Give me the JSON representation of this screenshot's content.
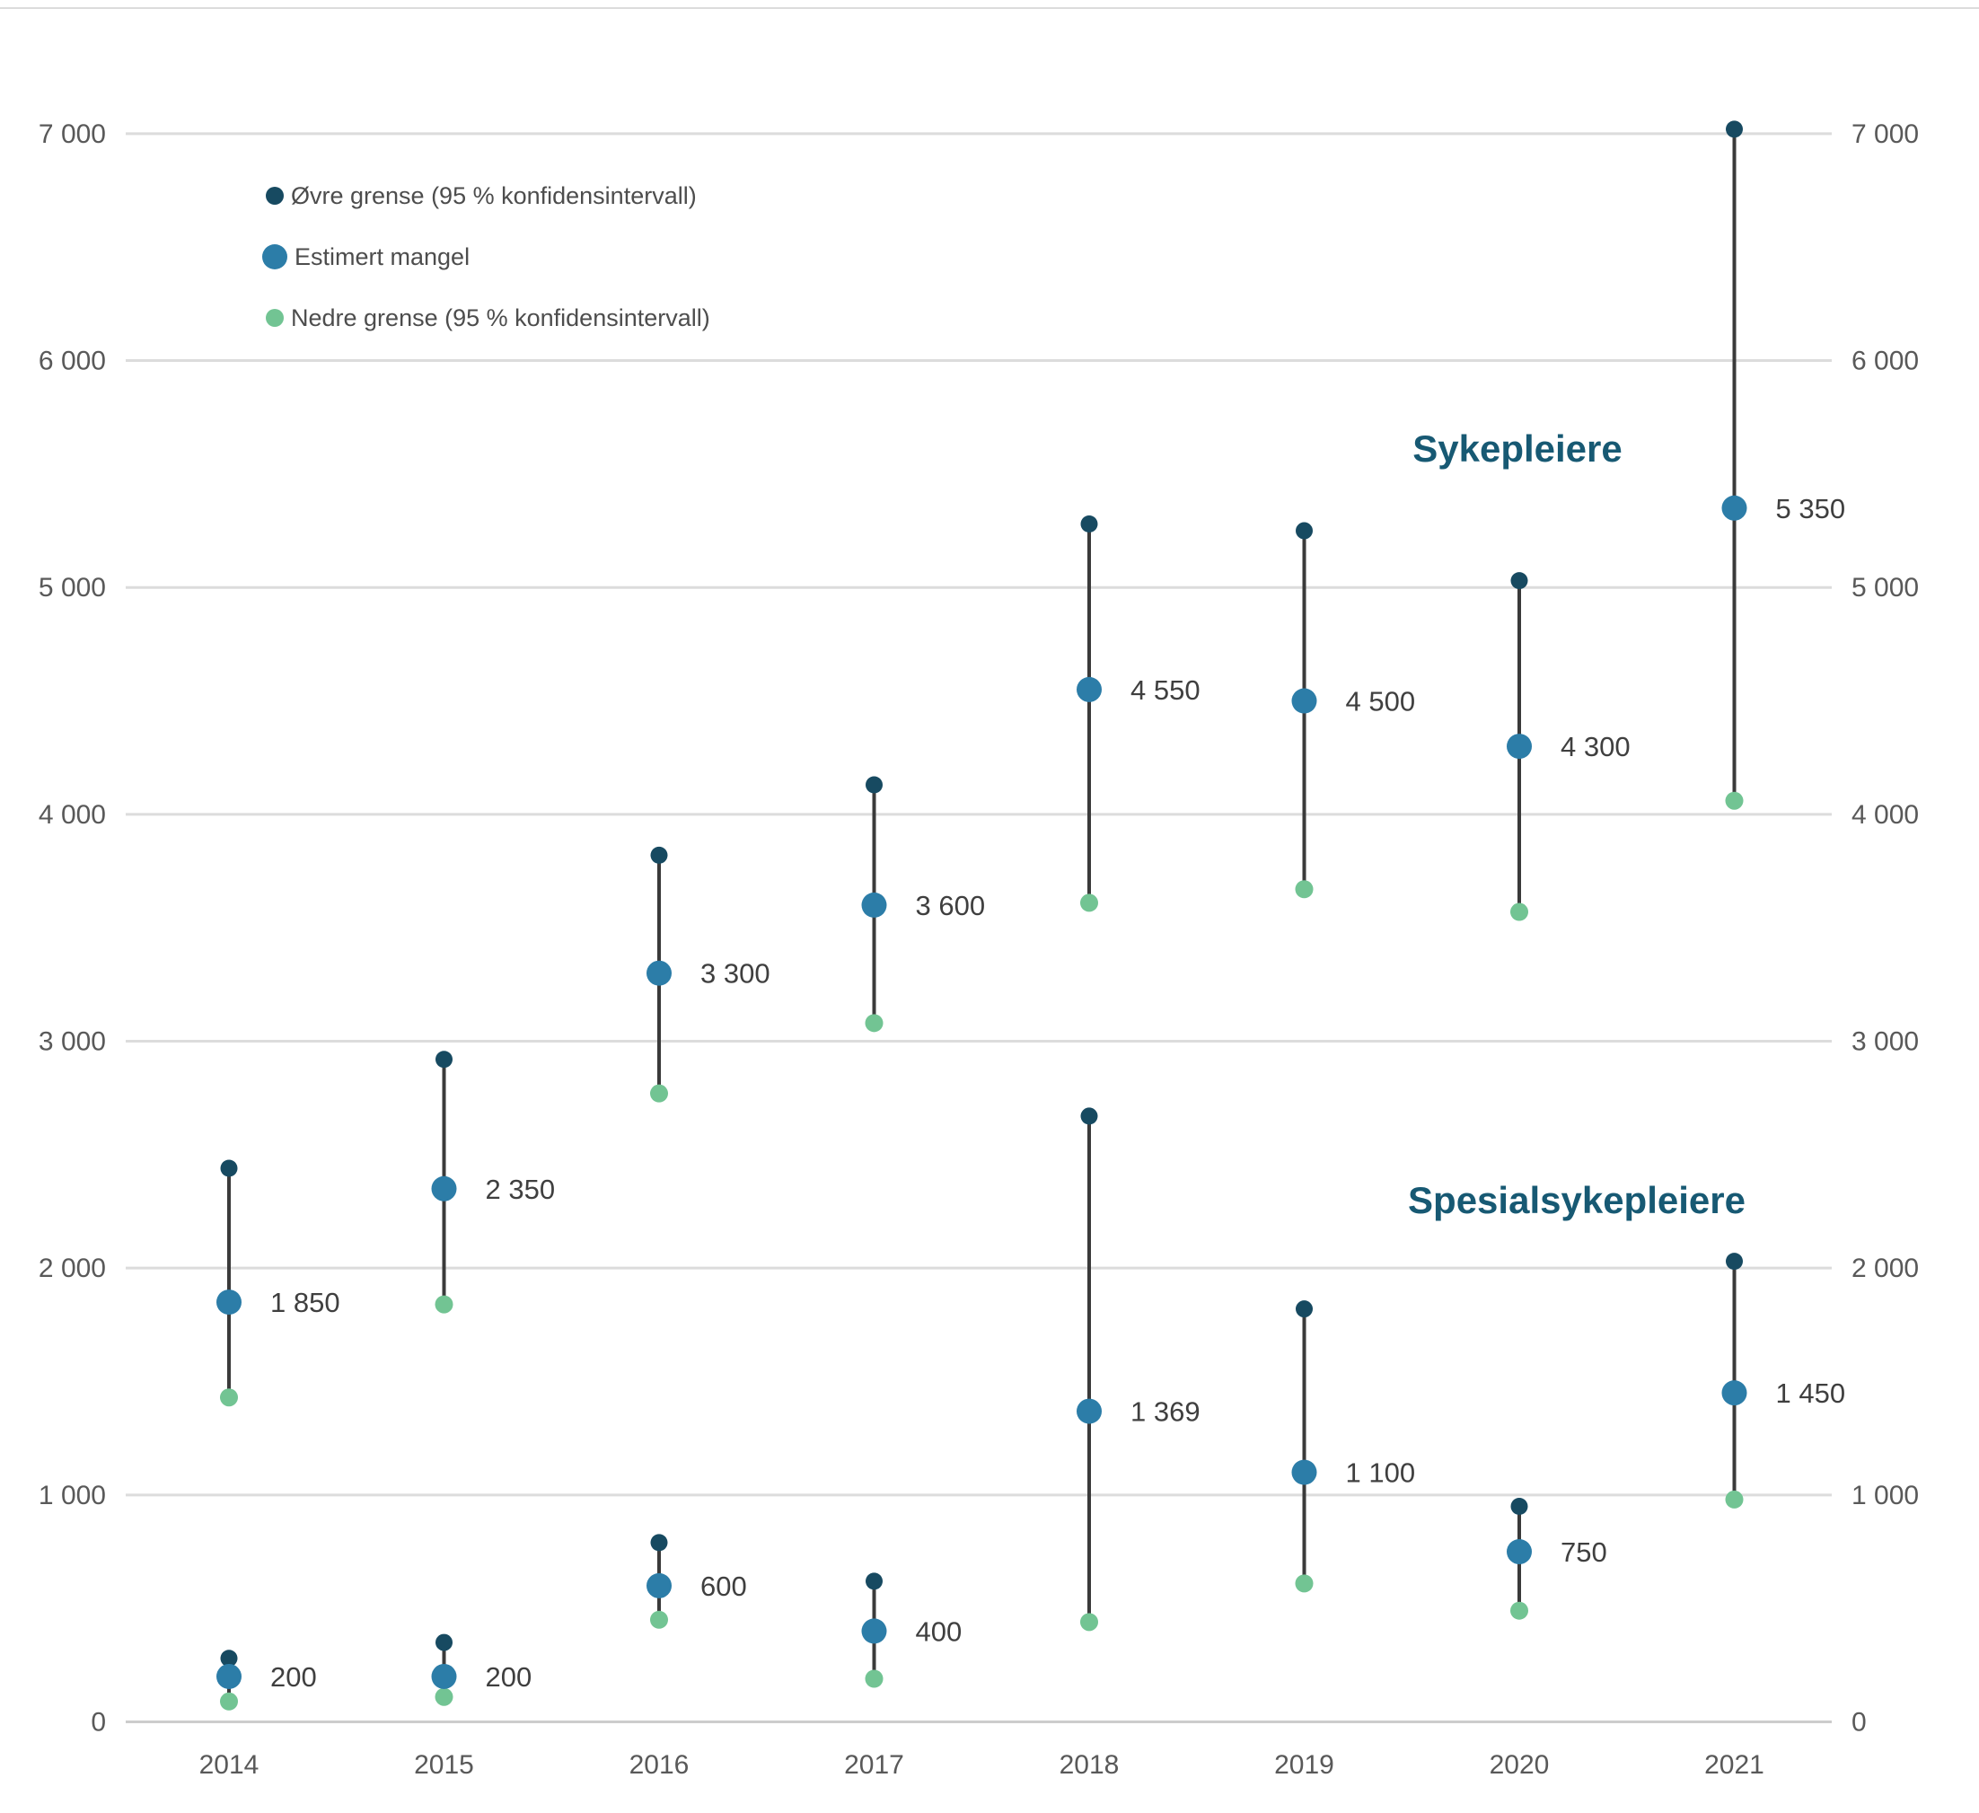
{
  "legend": {
    "items": [
      {
        "id": "upper",
        "label": "Øvre grense (95 % konfidensintervall)",
        "color": "#174A61",
        "size": "small"
      },
      {
        "id": "estimate",
        "label": "Estimert mangel",
        "color": "#2C7DA8",
        "size": "large"
      },
      {
        "id": "lower",
        "label": "Nedre grense (95 % konfidensintervall)",
        "color": "#72C493",
        "size": "small"
      }
    ]
  },
  "chart_data": {
    "type": "scatter",
    "subtype": "dot-and-whisker-range",
    "title": "",
    "xlabel": "",
    "ylabel": "",
    "categories": [
      "2014",
      "2015",
      "2016",
      "2017",
      "2018",
      "2019",
      "2020",
      "2021"
    ],
    "ylim": [
      0,
      7000
    ],
    "yticks": [
      0,
      1000,
      2000,
      3000,
      4000,
      5000,
      6000,
      7000
    ],
    "ytick_labels": [
      "0",
      "1 000",
      "2 000",
      "3 000",
      "4 000",
      "5 000",
      "6 000",
      "7 000"
    ],
    "grid": true,
    "legend_position": "top-left",
    "series": [
      {
        "name": "Sykepleiere",
        "estimate": [
          1850,
          2350,
          3300,
          3600,
          4550,
          4500,
          4300,
          5350
        ],
        "upper": [
          2440,
          2920,
          3820,
          4130,
          5280,
          5250,
          5030,
          7020
        ],
        "lower": [
          1430,
          1840,
          2770,
          3080,
          3610,
          3670,
          3570,
          4060
        ],
        "estimate_labels": [
          "1 850",
          "2 350",
          "3 300",
          "3 600",
          "4 550",
          "4 500",
          "4 300",
          "5 350"
        ]
      },
      {
        "name": "Spesialsykepleiere",
        "estimate": [
          200,
          200,
          600,
          400,
          1369,
          1100,
          750,
          1450
        ],
        "upper": [
          280,
          350,
          790,
          620,
          2670,
          1820,
          950,
          2030
        ],
        "lower": [
          90,
          110,
          450,
          190,
          440,
          610,
          490,
          980
        ],
        "estimate_labels": [
          "200",
          "200",
          "600",
          "400",
          "1 369",
          "1 100",
          "750",
          "1 450"
        ]
      }
    ]
  },
  "colors": {
    "upper_dot": "#174A61",
    "estimate_dot": "#2C7DA8",
    "lower_dot": "#72C493",
    "whisker": "#3A3A3A",
    "gridline": "#DCDCDC",
    "zero_gridline": "#CCCCCC",
    "tick_text": "#595959",
    "data_label_text": "#3F3F3F",
    "series_title_text": "#175973"
  }
}
